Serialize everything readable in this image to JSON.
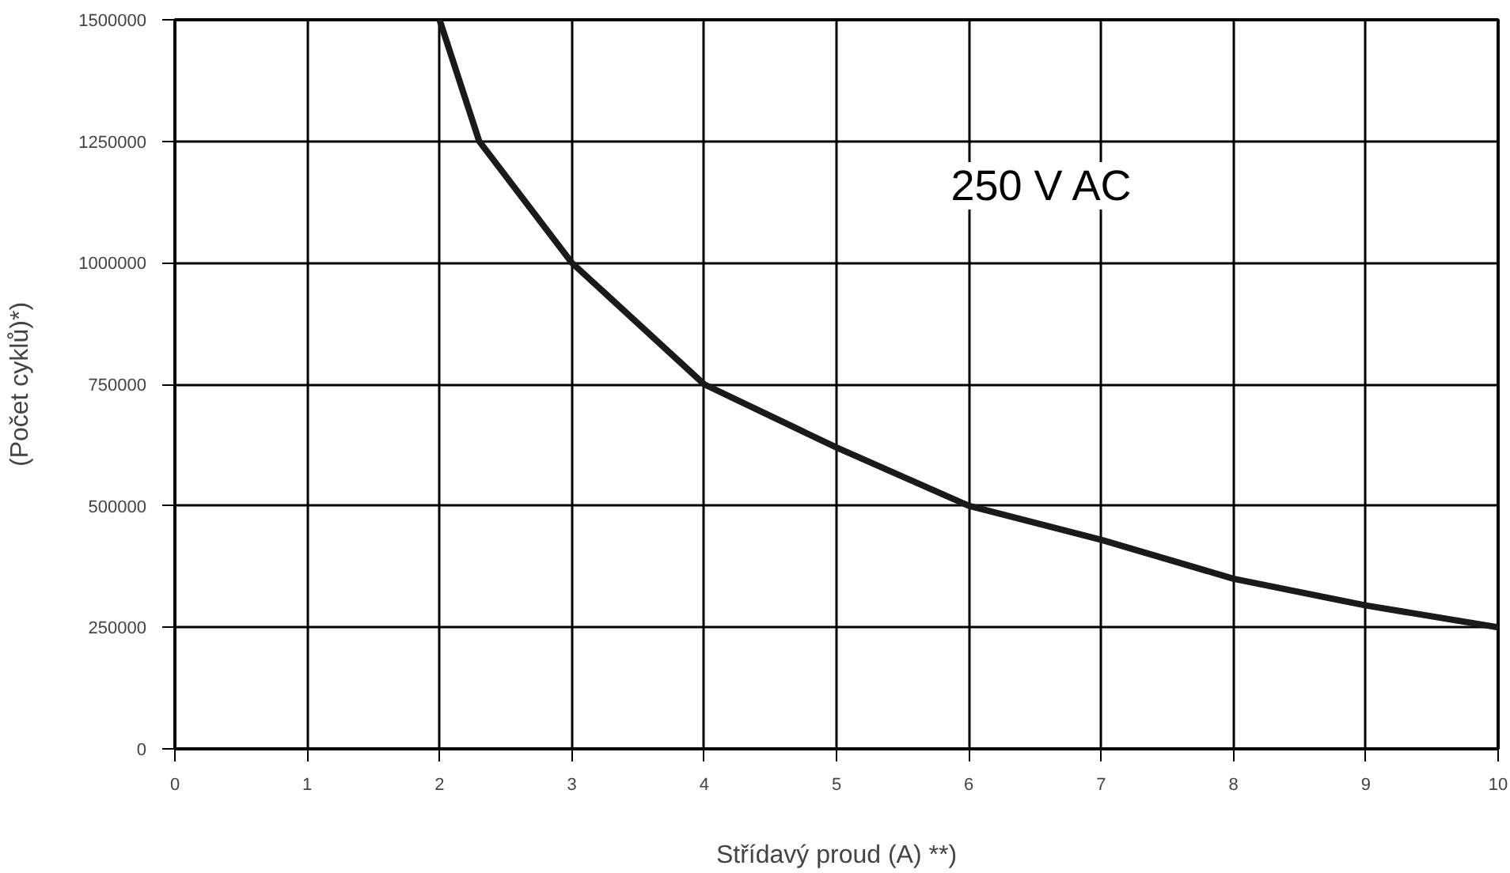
{
  "chart_data": {
    "type": "line",
    "xlabel": "Střídavý proud (A) **)",
    "ylabel": "(Počet cyklů)*)",
    "x": [
      2,
      2.3,
      3,
      4,
      5,
      6,
      7,
      8,
      9,
      10
    ],
    "series": [
      {
        "color": "#1a1a1a",
        "values": [
          1500000,
          1250000,
          1000000,
          750000,
          620000,
          500000,
          430000,
          350000,
          295000,
          250000
        ]
      }
    ],
    "xlim": [
      0,
      10
    ],
    "ylim": [
      0,
      1500000
    ],
    "xticks": [
      0,
      1,
      2,
      3,
      4,
      5,
      6,
      7,
      8,
      9,
      10
    ],
    "yticks": [
      0,
      250000,
      500000,
      750000,
      1000000,
      1250000,
      1500000
    ],
    "grid": true,
    "marker": "none",
    "line_style": "solid",
    "annotations": [
      "250 V AC"
    ]
  }
}
